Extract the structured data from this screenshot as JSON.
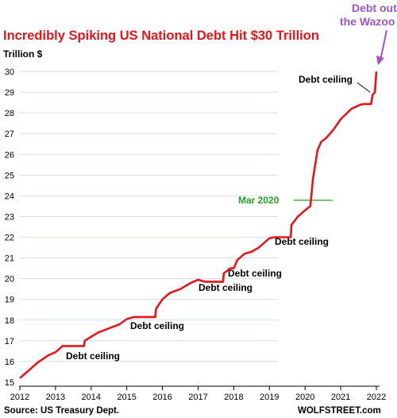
{
  "chart_data": {
    "type": "line",
    "title": "Incredibly Spiking US National Debt Hit $30 Trillion",
    "ylabel": "Trillion $",
    "xlabel": "",
    "ylim": [
      15,
      30
    ],
    "xlim": [
      2012,
      2022
    ],
    "x_ticks": [
      "2012",
      "2013",
      "2014",
      "2015",
      "2016",
      "2017",
      "2018",
      "2019",
      "2020",
      "2021",
      "2022"
    ],
    "y_ticks": [
      "15",
      "16",
      "17",
      "18",
      "19",
      "20",
      "21",
      "22",
      "23",
      "24",
      "25",
      "26",
      "27",
      "28",
      "29",
      "30"
    ],
    "grid": "horizontal",
    "colors": {
      "line": "#e8141b",
      "grid": "#d4dde8",
      "mar2020": "#21a121",
      "wazoo": "#a155c6"
    },
    "series": [
      {
        "x": [
          2012.0,
          2012.2,
          2012.5,
          2012.8,
          2013.0,
          2013.2,
          2013.38,
          2013.8,
          2013.82,
          2014.0,
          2014.2,
          2014.5,
          2014.8,
          2015.0,
          2015.2,
          2015.8,
          2015.82,
          2016.0,
          2016.2,
          2016.5,
          2016.8,
          2017.0,
          2017.2,
          2017.7,
          2017.72,
          2017.9,
          2018.0,
          2018.1,
          2018.3,
          2018.5,
          2018.7,
          2018.9,
          2019.0,
          2019.15,
          2019.6,
          2019.62,
          2019.8,
          2020.0,
          2020.15,
          2020.22,
          2020.35,
          2020.45,
          2020.6,
          2020.8,
          2021.0,
          2021.3,
          2021.55,
          2021.65,
          2021.75,
          2021.8,
          2021.85,
          2021.9,
          2021.96,
          2022.0
        ],
        "y": [
          15.2,
          15.5,
          15.95,
          16.3,
          16.45,
          16.75,
          16.75,
          16.75,
          17.0,
          17.2,
          17.4,
          17.6,
          17.8,
          18.05,
          18.15,
          18.15,
          18.55,
          19.0,
          19.3,
          19.5,
          19.8,
          19.95,
          19.85,
          19.85,
          20.25,
          20.5,
          20.5,
          20.9,
          21.2,
          21.3,
          21.5,
          21.8,
          21.95,
          22.0,
          22.0,
          22.6,
          23.0,
          23.3,
          23.5,
          24.8,
          26.2,
          26.6,
          26.8,
          27.2,
          27.7,
          28.2,
          28.4,
          28.43,
          28.43,
          28.43,
          28.43,
          28.9,
          29.0,
          30.0
        ]
      }
    ],
    "annotations": {
      "debt_ceiling": "Debt ceiling",
      "mar2020": "Mar 2020",
      "wazoo_line1": "Debt out",
      "wazoo_line2": "the Wazoo"
    },
    "source": "Source: US Treasury Dept.",
    "brand": "WOLFSTREET.com"
  }
}
